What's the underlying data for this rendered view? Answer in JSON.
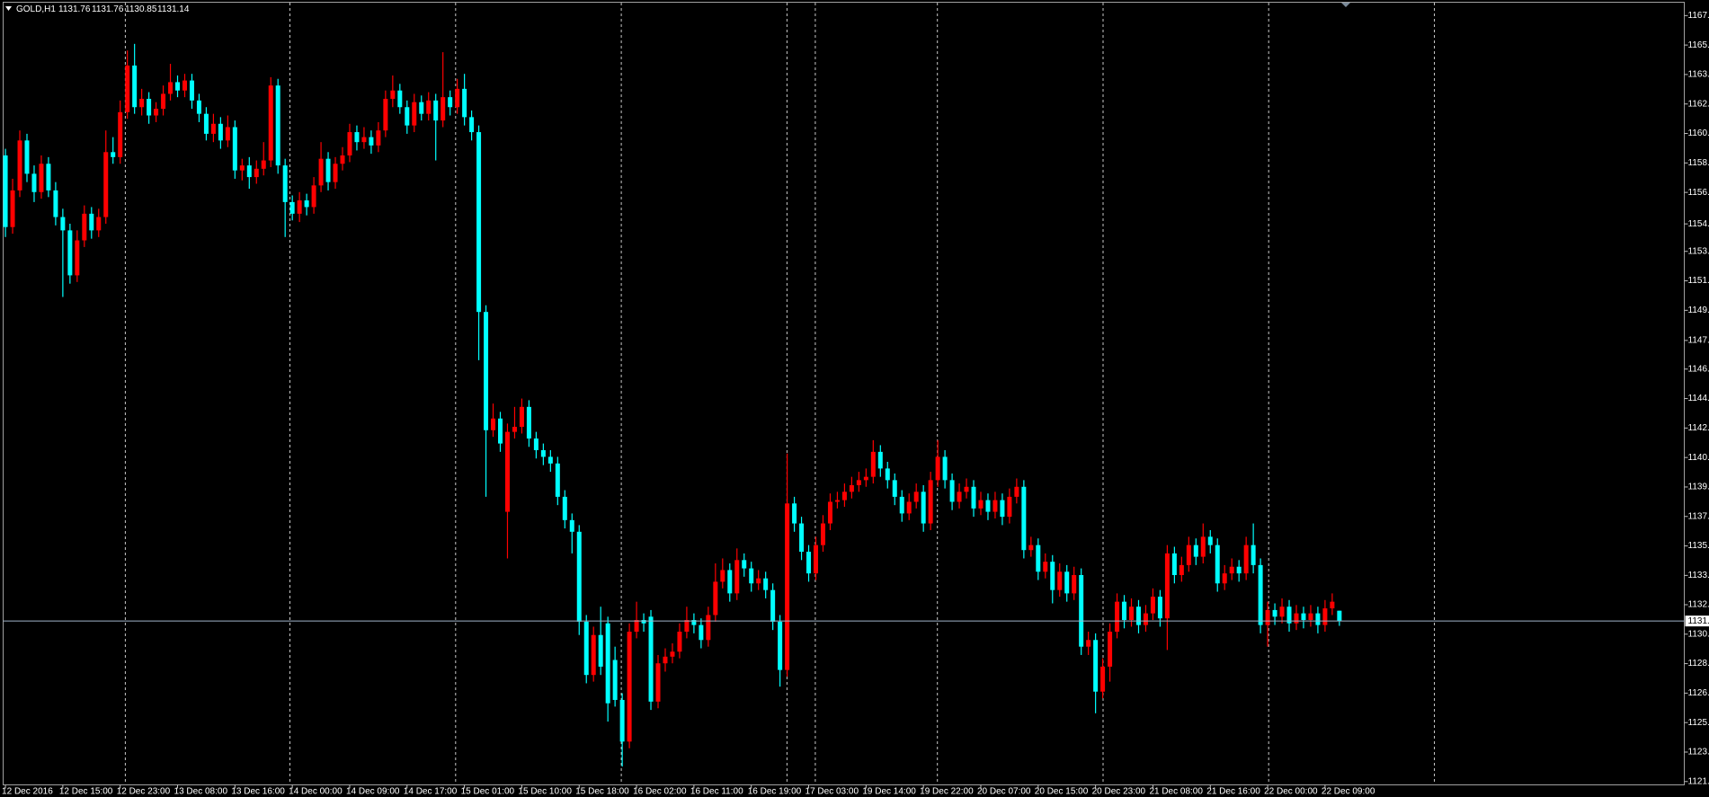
{
  "chart_data": {
    "type": "candlestick",
    "title": "GOLD,H1",
    "ohlc_header": [
      1131.76,
      1131.76,
      1130.85,
      1131.14
    ],
    "up_color": "#ff0000",
    "down_color": "#00ffff",
    "ylim": [
      1121.3,
      1168.3
    ],
    "yticks": [
      {
        "value": 1121.5,
        "label": "1121."
      },
      {
        "value": 1123.27,
        "label": "1123."
      },
      {
        "value": 1125.04,
        "label": "1125."
      },
      {
        "value": 1126.81,
        "label": "1126."
      },
      {
        "value": 1128.58,
        "label": "1128."
      },
      {
        "value": 1130.35,
        "label": "1130."
      },
      {
        "value": 1132.12,
        "label": "1132."
      },
      {
        "value": 1133.88,
        "label": "1133."
      },
      {
        "value": 1135.65,
        "label": "1135."
      },
      {
        "value": 1137.42,
        "label": "1137."
      },
      {
        "value": 1139.19,
        "label": "1139."
      },
      {
        "value": 1140.96,
        "label": "1140."
      },
      {
        "value": 1142.73,
        "label": "1142."
      },
      {
        "value": 1144.5,
        "label": "1144."
      },
      {
        "value": 1146.27,
        "label": "1146."
      },
      {
        "value": 1147.99,
        "label": "1147."
      },
      {
        "value": 1149.8,
        "label": "1149."
      },
      {
        "value": 1151.57,
        "label": "1151."
      },
      {
        "value": 1153.34,
        "label": "1153."
      },
      {
        "value": 1154.99,
        "label": "1154."
      },
      {
        "value": 1156.88,
        "label": "1156."
      },
      {
        "value": 1158.65,
        "label": "1158."
      },
      {
        "value": 1160.42,
        "label": "1160."
      },
      {
        "value": 1162.19,
        "label": "1162."
      },
      {
        "value": 1163.96,
        "label": "1163."
      },
      {
        "value": 1165.73,
        "label": "1165."
      },
      {
        "value": 1167.5,
        "label": "1167."
      }
    ],
    "price_line": {
      "value": 1131.14,
      "label": "1131."
    },
    "categories": [
      "12 Dec 2016",
      null,
      null,
      null,
      null,
      null,
      null,
      null,
      "12 Dec 15:00",
      null,
      null,
      null,
      null,
      null,
      null,
      null,
      "12 Dec 23:00",
      null,
      null,
      null,
      null,
      null,
      null,
      null,
      "13 Dec 08:00",
      null,
      null,
      null,
      null,
      null,
      null,
      null,
      "13 Dec 16:00",
      null,
      null,
      null,
      null,
      null,
      null,
      null,
      "14 Dec 00:00",
      null,
      null,
      null,
      null,
      null,
      null,
      null,
      "14 Dec 09:00",
      null,
      null,
      null,
      null,
      null,
      null,
      null,
      "14 Dec 17:00",
      null,
      null,
      null,
      null,
      null,
      null,
      null,
      "15 Dec 01:00",
      null,
      null,
      null,
      null,
      null,
      null,
      null,
      "15 Dec 10:00",
      null,
      null,
      null,
      null,
      null,
      null,
      null,
      "15 Dec 18:00",
      null,
      null,
      null,
      null,
      null,
      null,
      null,
      "16 Dec 02:00",
      null,
      null,
      null,
      null,
      null,
      null,
      null,
      "16 Dec 11:00",
      null,
      null,
      null,
      null,
      null,
      null,
      null,
      "16 Dec 19:00",
      null,
      null,
      null,
      null,
      null,
      null,
      null,
      "17 Dec 03:00",
      null,
      null,
      null,
      null,
      null,
      null,
      null,
      "19 Dec 14:00",
      null,
      null,
      null,
      null,
      null,
      null,
      null,
      "19 Dec 22:00",
      null,
      null,
      null,
      null,
      null,
      null,
      null,
      "20 Dec 07:00",
      null,
      null,
      null,
      null,
      null,
      null,
      null,
      "20 Dec 15:00",
      null,
      null,
      null,
      null,
      null,
      null,
      null,
      "20 Dec 23:00",
      null,
      null,
      null,
      null,
      null,
      null,
      null,
      "21 Dec 08:00",
      null,
      null,
      null,
      null,
      null,
      null,
      null,
      "21 Dec 16:00",
      null,
      null,
      null,
      null,
      null,
      null,
      null,
      "22 Dec 00:00",
      null,
      null,
      null,
      null,
      null,
      null,
      null,
      "22 Dec 09:00",
      null,
      null
    ],
    "open": [
      1159.1,
      1154.8,
      1157.0,
      1160.0,
      1158.0,
      1156.9,
      1158.6,
      1157.0,
      1155.4,
      1154.6,
      1151.9,
      1154.0,
      1155.6,
      1154.6,
      1155.4,
      1159.3,
      1159.0,
      1161.7,
      1164.5,
      1162.0,
      1162.5,
      1161.5,
      1161.9,
      1162.8,
      1163.5,
      1163.0,
      1163.6,
      1162.4,
      1161.6,
      1160.4,
      1161.0,
      1160.0,
      1160.8,
      1158.2,
      1158.5,
      1157.8,
      1158.3,
      1158.8,
      1163.3,
      1158.5,
      1156.3,
      1155.6,
      1156.4,
      1156.0,
      1157.3,
      1158.9,
      1157.5,
      1158.6,
      1159.1,
      1160.5,
      1159.9,
      1160.2,
      1159.7,
      1160.6,
      1162.5,
      1163.0,
      1162.0,
      1160.9,
      1162.3,
      1161.6,
      1162.4,
      1161.2,
      1162.6,
      1162.0,
      1163.1,
      1161.4,
      1160.5,
      1149.7,
      1142.6,
      1143.3,
      1137.7,
      1142.5,
      1142.8,
      1144.0,
      1142.1,
      1141.4,
      1141.0,
      1140.6,
      1138.6,
      1137.2,
      1136.5,
      1131.1,
      1127.9,
      1130.3,
      1131.0,
      1128.8,
      1126.4,
      1123.9,
      1130.5,
      1131.2,
      1131.4,
      1126.3,
      1128.6,
      1129.0,
      1129.3,
      1130.5,
      1131.2,
      1130.9,
      1130.0,
      1131.5,
      1133.5,
      1134.2,
      1132.8,
      1134.8,
      1134.3,
      1133.4,
      1133.7,
      1133.0,
      1131.1,
      1128.2,
      1138.2,
      1137.0,
      1135.3,
      1134.0,
      1135.7,
      1137.0,
      1138.3,
      1138.4,
      1138.9,
      1139.3,
      1139.6,
      1139.8,
      1141.3,
      1140.3,
      1139.6,
      1138.6,
      1137.6,
      1138.3,
      1138.9,
      1137.0,
      1139.6,
      1141.0,
      1139.6,
      1138.3,
      1138.9,
      1139.2,
      1137.9,
      1138.4,
      1137.7,
      1138.4,
      1137.4,
      1138.6,
      1139.2,
      1135.4,
      1135.7,
      1134.1,
      1134.7,
      1133.0,
      1134.1,
      1132.8,
      1133.9,
      1129.6,
      1130.0,
      1126.9,
      1128.4,
      1130.5,
      1132.3,
      1131.2,
      1132.0,
      1130.9,
      1131.6,
      1132.6,
      1131.3,
      1135.2,
      1133.9,
      1134.5,
      1135.7,
      1135.0,
      1136.2,
      1135.7,
      1133.4,
      1134.0,
      1134.4,
      1134.0,
      1135.7,
      1134.5,
      1130.9,
      1131.8,
      1131.4,
      1132.0,
      1131.0,
      1131.6,
      1131.2,
      1131.6,
      1130.9,
      1131.9,
      1131.76
    ],
    "high": [
      1159.5,
      1157.7,
      1160.6,
      1160.4,
      1158.5,
      1159.1,
      1159.0,
      1157.5,
      1155.9,
      1155.0,
      1154.6,
      1156.1,
      1156.0,
      1155.9,
      1160.6,
      1160.2,
      1162.4,
      1165.4,
      1165.8,
      1163.1,
      1162.9,
      1162.3,
      1163.3,
      1164.6,
      1163.9,
      1164.0,
      1164.0,
      1162.8,
      1162.0,
      1161.6,
      1161.4,
      1161.5,
      1161.2,
      1158.9,
      1159.0,
      1158.8,
      1159.9,
      1163.8,
      1163.7,
      1158.9,
      1156.7,
      1156.9,
      1156.8,
      1157.8,
      1159.9,
      1159.3,
      1159.0,
      1159.6,
      1161.0,
      1160.9,
      1160.8,
      1160.6,
      1161.1,
      1163.0,
      1163.9,
      1163.4,
      1162.4,
      1162.8,
      1162.7,
      1162.9,
      1162.8,
      1165.3,
      1163.0,
      1163.7,
      1164.0,
      1161.8,
      1160.9,
      1150.1,
      1144.2,
      1143.7,
      1143.0,
      1144.0,
      1144.5,
      1144.4,
      1142.5,
      1141.8,
      1141.4,
      1141.0,
      1139.0,
      1137.6,
      1136.9,
      1131.5,
      1130.8,
      1132.0,
      1131.4,
      1129.6,
      1126.8,
      1131.0,
      1132.3,
      1131.6,
      1131.8,
      1129.1,
      1129.5,
      1129.8,
      1131.0,
      1132.0,
      1131.6,
      1131.3,
      1132.0,
      1134.6,
      1134.9,
      1134.6,
      1135.5,
      1135.2,
      1134.7,
      1134.2,
      1134.1,
      1133.4,
      1131.5,
      1141.2,
      1138.6,
      1137.4,
      1135.7,
      1136.2,
      1137.5,
      1138.8,
      1138.9,
      1139.4,
      1139.8,
      1140.1,
      1140.3,
      1142.0,
      1141.7,
      1140.7,
      1140.0,
      1139.0,
      1138.8,
      1139.4,
      1139.3,
      1140.1,
      1142.0,
      1141.4,
      1140.0,
      1139.4,
      1139.7,
      1139.6,
      1138.9,
      1138.8,
      1138.9,
      1138.8,
      1139.1,
      1139.7,
      1139.6,
      1136.2,
      1136.1,
      1135.2,
      1135.1,
      1134.6,
      1134.5,
      1134.4,
      1134.3,
      1130.5,
      1130.4,
      1128.9,
      1131.0,
      1132.8,
      1132.7,
      1132.5,
      1132.4,
      1132.1,
      1133.1,
      1133.0,
      1135.7,
      1135.6,
      1135.0,
      1136.2,
      1136.1,
      1137.0,
      1136.6,
      1136.1,
      1134.5,
      1134.9,
      1134.8,
      1136.2,
      1137.0,
      1134.9,
      1132.3,
      1132.2,
      1132.5,
      1132.4,
      1132.1,
      1132.0,
      1132.1,
      1132.0,
      1132.4,
      1132.8,
      1131.76
    ],
    "low": [
      1154.2,
      1154.4,
      1156.6,
      1157.5,
      1156.3,
      1156.5,
      1156.6,
      1154.9,
      1150.6,
      1151.4,
      1151.5,
      1153.6,
      1154.1,
      1154.2,
      1155.0,
      1158.6,
      1158.6,
      1161.3,
      1161.6,
      1161.5,
      1161.0,
      1161.1,
      1161.5,
      1162.4,
      1162.6,
      1162.6,
      1161.9,
      1161.1,
      1160.0,
      1159.9,
      1159.5,
      1159.6,
      1157.7,
      1157.6,
      1157.1,
      1157.4,
      1157.9,
      1158.4,
      1158.0,
      1154.2,
      1155.2,
      1155.1,
      1155.5,
      1155.6,
      1156.9,
      1157.0,
      1157.1,
      1158.2,
      1158.7,
      1159.4,
      1159.5,
      1159.2,
      1159.3,
      1160.2,
      1162.0,
      1161.6,
      1160.4,
      1160.5,
      1161.2,
      1161.2,
      1158.8,
      1160.8,
      1161.5,
      1161.6,
      1160.9,
      1160.0,
      1146.8,
      1138.6,
      1142.2,
      1141.3,
      1134.9,
      1142.1,
      1142.4,
      1141.6,
      1140.9,
      1140.5,
      1140.1,
      1138.1,
      1136.7,
      1135.2,
      1130.3,
      1127.4,
      1127.5,
      1127.9,
      1125.1,
      1126.0,
      1122.4,
      1123.5,
      1130.1,
      1130.5,
      1125.8,
      1125.9,
      1128.1,
      1128.6,
      1128.9,
      1130.1,
      1130.4,
      1129.5,
      1129.6,
      1131.1,
      1133.1,
      1132.3,
      1132.4,
      1133.8,
      1132.9,
      1133.0,
      1132.5,
      1130.6,
      1127.2,
      1127.8,
      1136.5,
      1134.8,
      1133.5,
      1133.6,
      1135.3,
      1136.6,
      1137.9,
      1138.0,
      1138.5,
      1138.9,
      1139.2,
      1139.4,
      1139.8,
      1139.1,
      1138.1,
      1137.1,
      1137.2,
      1137.9,
      1136.5,
      1136.6,
      1139.2,
      1139.1,
      1137.8,
      1137.9,
      1138.5,
      1137.4,
      1137.5,
      1137.2,
      1137.3,
      1136.9,
      1137.0,
      1138.2,
      1134.9,
      1135.0,
      1133.6,
      1133.7,
      1132.2,
      1132.6,
      1132.3,
      1132.4,
      1129.1,
      1129.1,
      1125.6,
      1126.5,
      1127.5,
      1130.1,
      1130.7,
      1130.8,
      1130.4,
      1130.5,
      1131.2,
      1130.8,
      1129.4,
      1133.4,
      1133.5,
      1134.1,
      1134.5,
      1134.6,
      1135.2,
      1132.9,
      1133.0,
      1133.6,
      1133.5,
      1133.6,
      1134.0,
      1130.4,
      1129.6,
      1130.9,
      1131.0,
      1130.5,
      1130.6,
      1130.7,
      1130.8,
      1130.4,
      1130.5,
      1131.5,
      1130.85
    ],
    "close": [
      1154.8,
      1157.0,
      1160.0,
      1158.0,
      1156.9,
      1158.6,
      1157.0,
      1155.4,
      1154.6,
      1151.9,
      1154.0,
      1155.6,
      1154.6,
      1155.4,
      1159.3,
      1159.0,
      1161.7,
      1164.5,
      1162.0,
      1162.5,
      1161.5,
      1161.9,
      1162.8,
      1163.5,
      1163.0,
      1163.6,
      1162.4,
      1161.6,
      1160.4,
      1161.0,
      1160.0,
      1160.8,
      1158.2,
      1158.5,
      1157.8,
      1158.3,
      1158.8,
      1163.3,
      1158.5,
      1156.3,
      1155.6,
      1156.4,
      1156.0,
      1157.3,
      1158.9,
      1157.5,
      1158.6,
      1159.1,
      1160.5,
      1159.9,
      1160.2,
      1159.7,
      1160.6,
      1162.5,
      1163.0,
      1162.0,
      1160.9,
      1162.3,
      1161.6,
      1162.4,
      1161.2,
      1162.6,
      1162.0,
      1163.1,
      1161.4,
      1160.5,
      1149.7,
      1142.6,
      1143.3,
      1141.8,
      1142.5,
      1142.8,
      1144.0,
      1142.1,
      1141.4,
      1141.0,
      1140.6,
      1138.6,
      1137.2,
      1136.5,
      1131.1,
      1127.9,
      1130.3,
      1128.4,
      1126.2,
      1126.4,
      1123.9,
      1130.5,
      1131.2,
      1131.0,
      1126.3,
      1128.6,
      1129.0,
      1129.3,
      1130.5,
      1131.2,
      1130.9,
      1130.0,
      1131.5,
      1133.5,
      1134.2,
      1132.8,
      1134.8,
      1134.3,
      1133.4,
      1133.7,
      1133.0,
      1131.1,
      1128.2,
      1138.2,
      1137.0,
      1135.3,
      1134.0,
      1135.7,
      1137.0,
      1138.3,
      1138.4,
      1138.9,
      1139.3,
      1139.6,
      1139.8,
      1141.3,
      1140.3,
      1139.6,
      1138.6,
      1137.6,
      1138.3,
      1138.9,
      1137.0,
      1139.6,
      1141.0,
      1139.6,
      1138.3,
      1138.9,
      1139.2,
      1137.9,
      1138.4,
      1137.7,
      1138.4,
      1137.4,
      1138.6,
      1139.2,
      1135.4,
      1135.7,
      1134.1,
      1134.7,
      1133.0,
      1134.1,
      1132.8,
      1133.9,
      1129.6,
      1130.0,
      1126.9,
      1128.4,
      1130.5,
      1132.3,
      1131.2,
      1132.0,
      1130.9,
      1131.6,
      1132.6,
      1131.3,
      1135.2,
      1133.9,
      1134.5,
      1135.7,
      1135.0,
      1136.2,
      1135.7,
      1133.4,
      1134.0,
      1134.4,
      1134.0,
      1135.7,
      1134.5,
      1130.9,
      1131.8,
      1131.4,
      1132.0,
      1131.0,
      1131.6,
      1131.2,
      1131.6,
      1130.9,
      1131.9,
      1132.3,
      1131.14
    ]
  }
}
